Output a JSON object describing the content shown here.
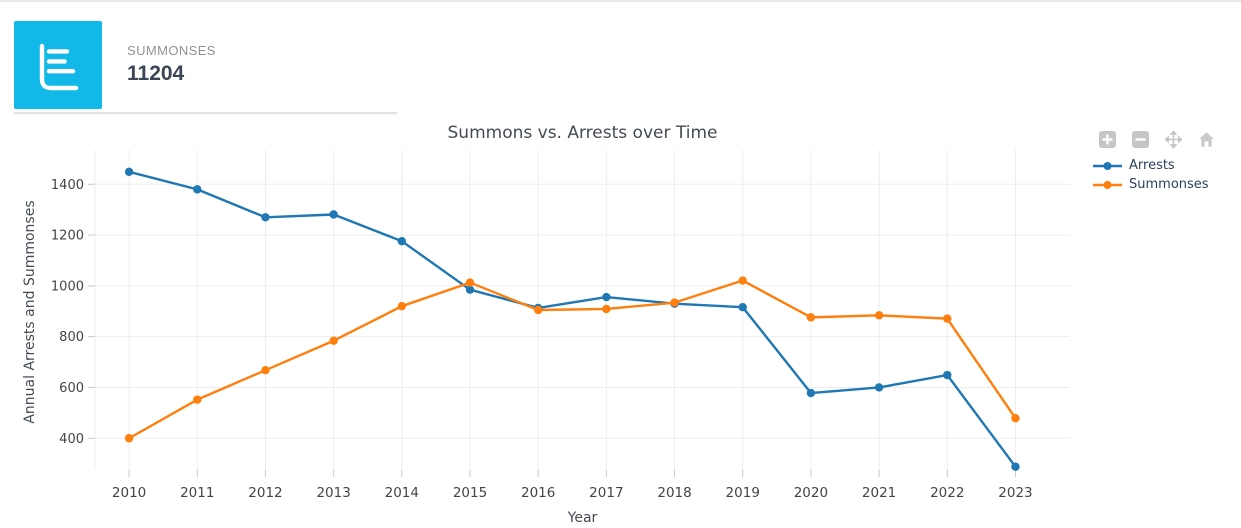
{
  "summary_card": {
    "label": "SUMMONSES",
    "value": "11204",
    "icon": "horizontal-bar-chart-icon",
    "icon_bg": "#12b8e8"
  },
  "toolbar": {
    "buttons": [
      {
        "name": "zoom-in",
        "icon": "plus-icon"
      },
      {
        "name": "zoom-out",
        "icon": "minus-icon"
      },
      {
        "name": "pan",
        "icon": "move-icon"
      },
      {
        "name": "reset",
        "icon": "home-icon"
      }
    ],
    "icon_color": "#c6c6c6"
  },
  "chart_data": {
    "type": "line",
    "title": "Summons vs. Arrests over Time",
    "xlabel": "Year",
    "ylabel": "Annual Arrests and Summonses",
    "categories": [
      2010,
      2011,
      2012,
      2013,
      2014,
      2015,
      2016,
      2017,
      2018,
      2019,
      2020,
      2021,
      2022,
      2023
    ],
    "series": [
      {
        "name": "Arrests",
        "color": "#1f77b4",
        "values": [
          1449,
          1380,
          1270,
          1281,
          1176,
          985,
          913,
          956,
          930,
          916,
          578,
          600,
          649,
          288
        ]
      },
      {
        "name": "Summonses",
        "color": "#ff7f0e",
        "values": [
          400,
          552,
          668,
          784,
          920,
          1013,
          905,
          909,
          934,
          1021,
          876,
          884,
          871,
          479
        ]
      }
    ],
    "yticks": [
      400,
      600,
      800,
      1000,
      1200,
      1400
    ],
    "ylim": [
      275,
      1535
    ],
    "xlim": [
      2009.5,
      2023.8
    ],
    "grid": true,
    "legend_position": "right",
    "marker": "circle",
    "grid_color": "#ededed",
    "tick_color": "#c8c8c8",
    "tick_label_color": "#444444"
  }
}
